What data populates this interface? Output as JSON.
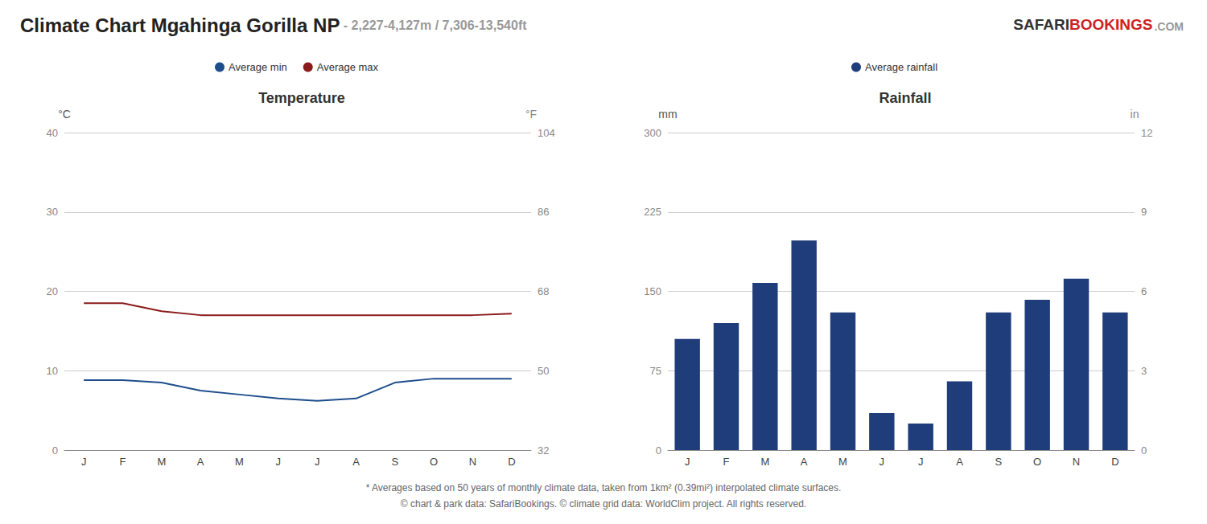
{
  "title": "Climate Chart Mgahinga Gorilla NP",
  "subtitle": " - 2,227-4,127m / 7,306-13,540ft",
  "annotations": [
    "* Averages based on 50 years of monthly climate data, taken from 1km² (0.39mi²) interpolated climate surfaces.",
    "© chart & park data: SafariBookings. © climate grid data: WorldClim project. All rights reserved.",
    "SAFARI",
    "BOOKINGS",
    ".COM"
  ],
  "chart_data": [
    {
      "type": "line",
      "title": "Temperature",
      "categories": [
        "J",
        "F",
        "M",
        "A",
        "M",
        "J",
        "J",
        "A",
        "S",
        "O",
        "N",
        "D"
      ],
      "series": [
        {
          "name": "Average min",
          "color": "#1e4d8c",
          "values": [
            8.8,
            8.8,
            8.5,
            7.5,
            7.0,
            6.5,
            6.2,
            6.5,
            8.5,
            9.0,
            9.0,
            9.0
          ]
        },
        {
          "name": "Average max",
          "color": "#8b1a1a",
          "values": [
            18.5,
            18.5,
            17.5,
            17.0,
            17.0,
            17.0,
            17.0,
            17.0,
            17.0,
            17.0,
            17.0,
            17.2
          ]
        }
      ],
      "ylabel": "°C",
      "ylim": [
        0,
        40
      ],
      "yticks": [
        0,
        10,
        20,
        30,
        40
      ],
      "y2label": "°F",
      "y2lim": [
        32,
        104
      ],
      "y2ticks": [
        32,
        50,
        68,
        86,
        104
      ],
      "grid": true,
      "legend": "top"
    },
    {
      "type": "bar",
      "title": "Rainfall",
      "categories": [
        "J",
        "F",
        "M",
        "A",
        "M",
        "J",
        "J",
        "A",
        "S",
        "O",
        "N",
        "D"
      ],
      "series": [
        {
          "name": "Average rainfall",
          "color": "#1f3d7a",
          "values": [
            105,
            120,
            158,
            198,
            130,
            35,
            25,
            65,
            130,
            142,
            162,
            130
          ]
        }
      ],
      "ylabel": "mm",
      "ylim": [
        0,
        300
      ],
      "yticks": [
        0,
        75,
        150,
        225,
        300
      ],
      "y2label": "in",
      "y2lim": [
        0,
        12
      ],
      "y2ticks": [
        0,
        3,
        6,
        9,
        12
      ],
      "grid": true,
      "legend": "top"
    }
  ]
}
